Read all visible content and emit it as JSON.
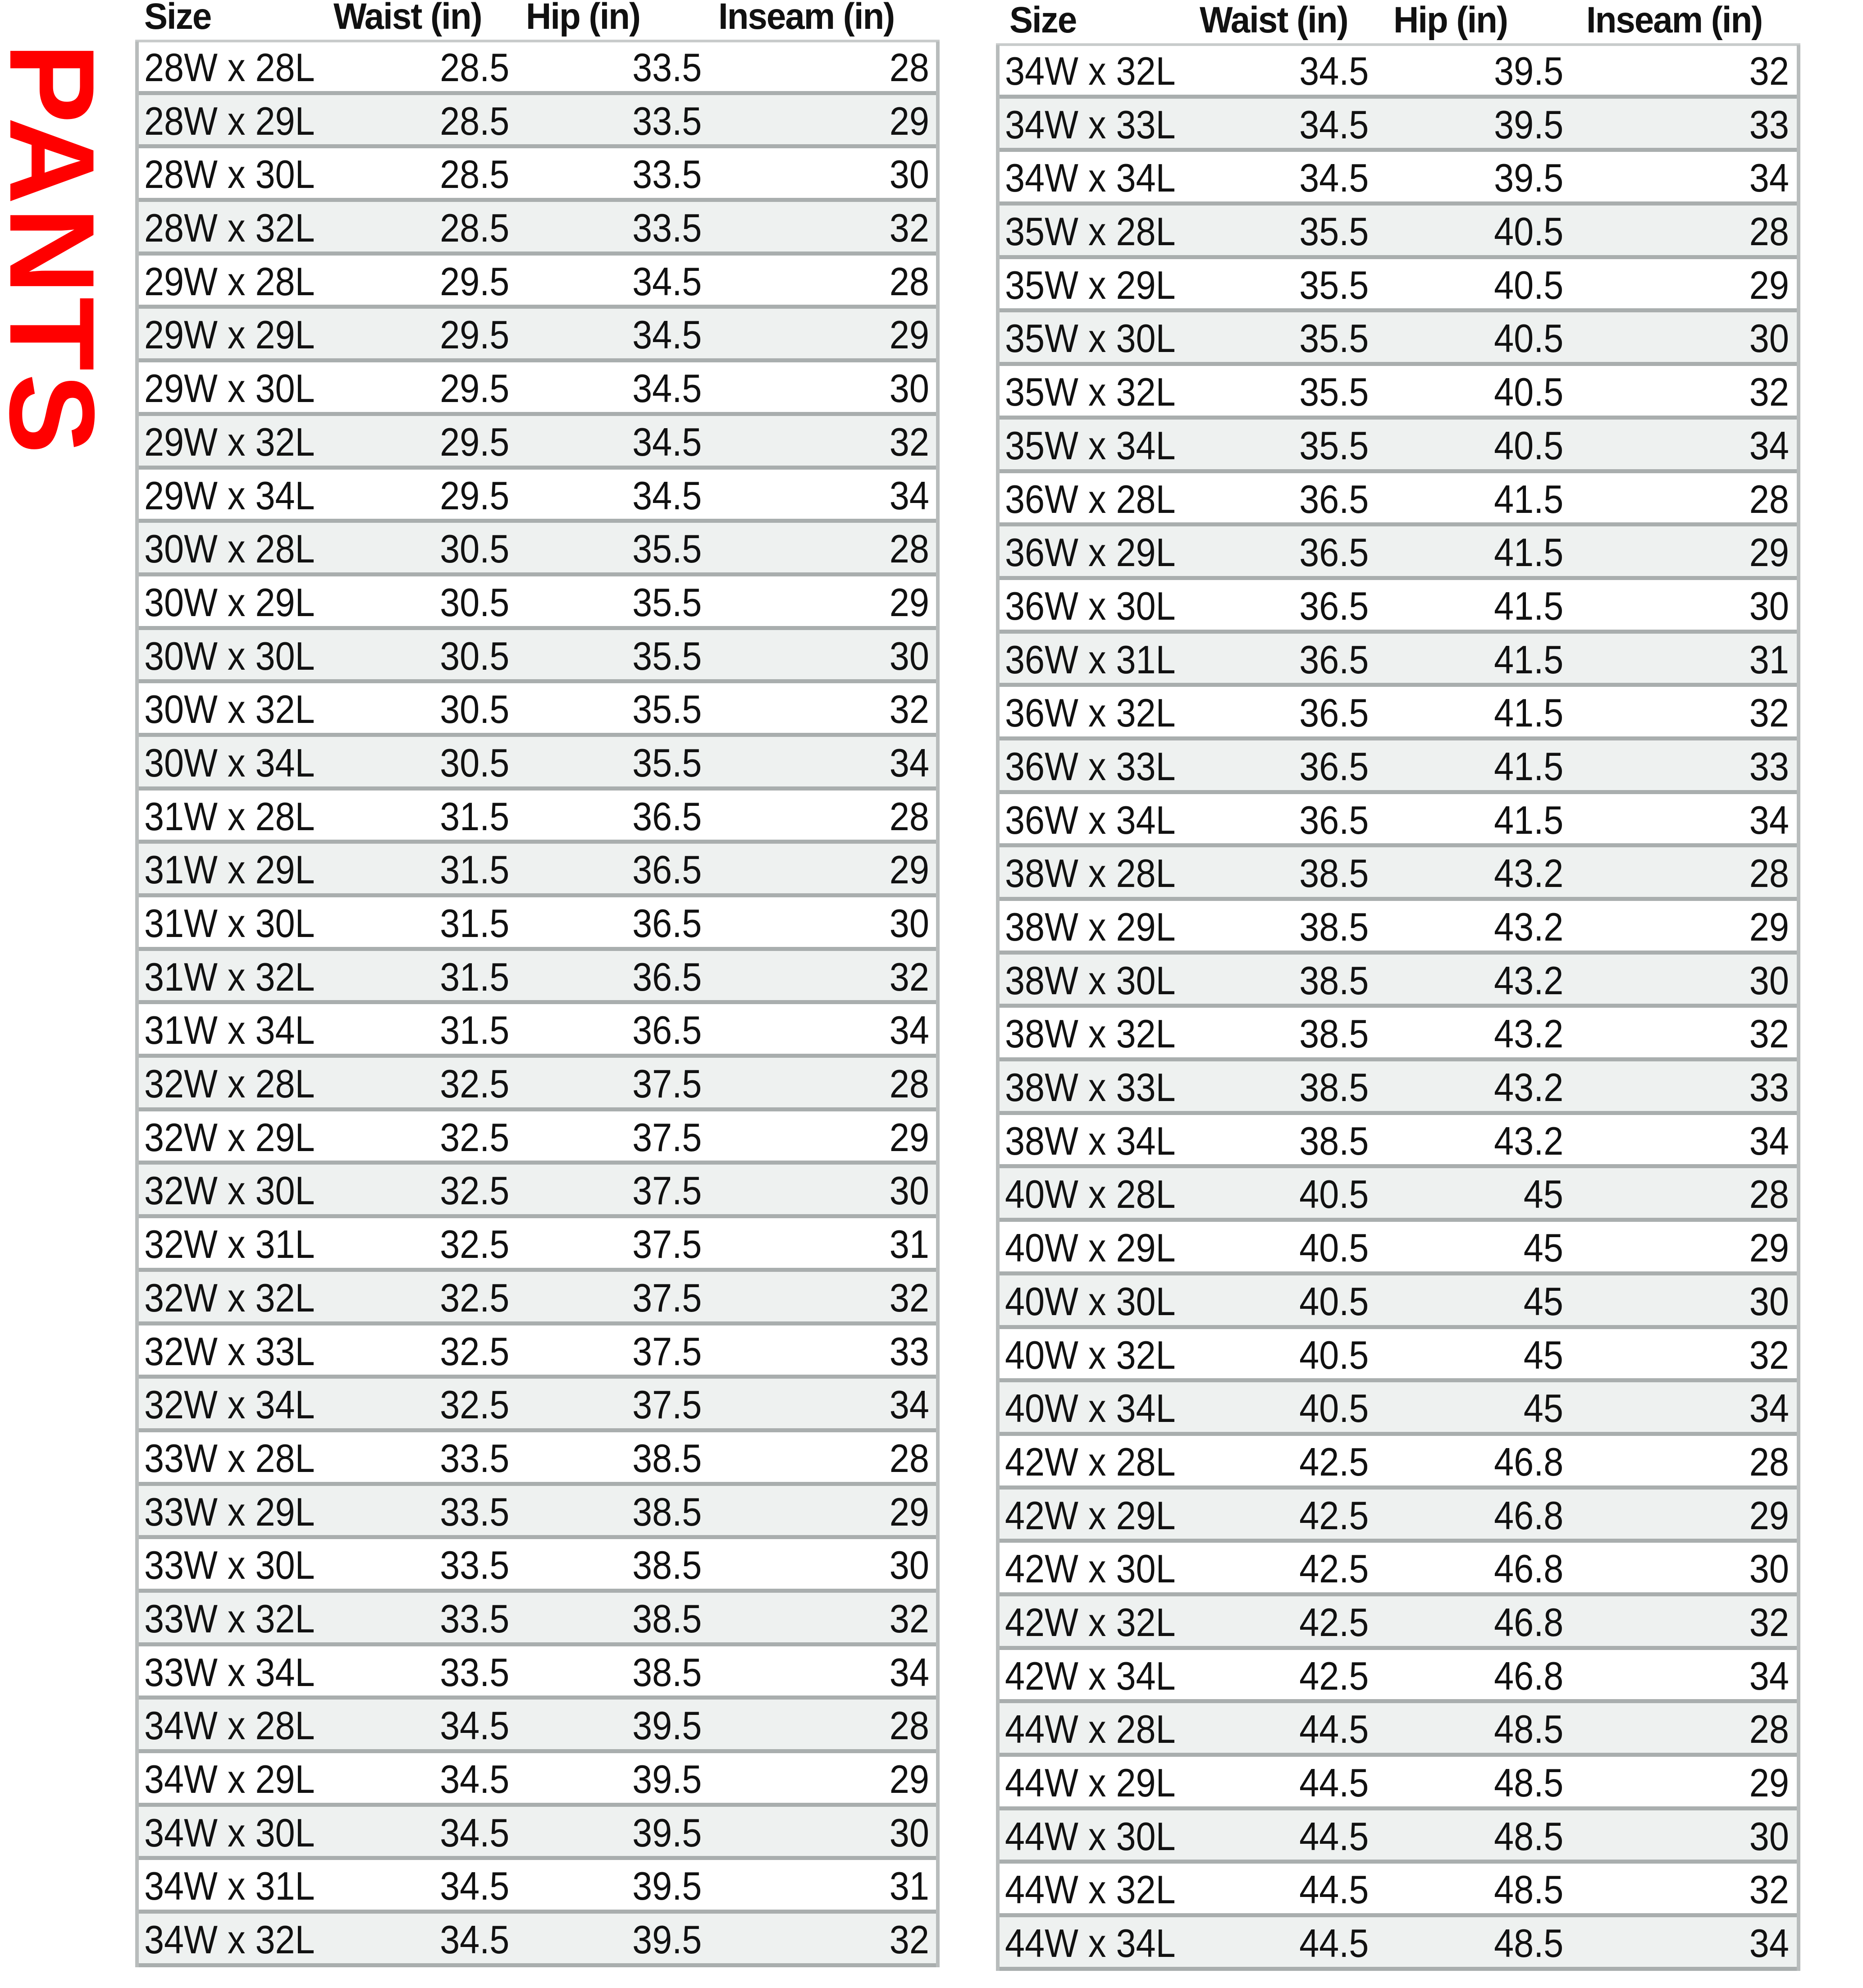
{
  "title": "PANTS",
  "headers": [
    "Size",
    "Waist (in)",
    "Hip (in)",
    "Inseam (in)"
  ],
  "tables": [
    {
      "rows": [
        [
          "28W x 28L",
          "28.5",
          "33.5",
          "28"
        ],
        [
          "28W x 29L",
          "28.5",
          "33.5",
          "29"
        ],
        [
          "28W x 30L",
          "28.5",
          "33.5",
          "30"
        ],
        [
          "28W x 32L",
          "28.5",
          "33.5",
          "32"
        ],
        [
          "29W x 28L",
          "29.5",
          "34.5",
          "28"
        ],
        [
          "29W x 29L",
          "29.5",
          "34.5",
          "29"
        ],
        [
          "29W x 30L",
          "29.5",
          "34.5",
          "30"
        ],
        [
          "29W x 32L",
          "29.5",
          "34.5",
          "32"
        ],
        [
          "29W x 34L",
          "29.5",
          "34.5",
          "34"
        ],
        [
          "30W x 28L",
          "30.5",
          "35.5",
          "28"
        ],
        [
          "30W x 29L",
          "30.5",
          "35.5",
          "29"
        ],
        [
          "30W x 30L",
          "30.5",
          "35.5",
          "30"
        ],
        [
          "30W x 32L",
          "30.5",
          "35.5",
          "32"
        ],
        [
          "30W x 34L",
          "30.5",
          "35.5",
          "34"
        ],
        [
          "31W x 28L",
          "31.5",
          "36.5",
          "28"
        ],
        [
          "31W x 29L",
          "31.5",
          "36.5",
          "29"
        ],
        [
          "31W x 30L",
          "31.5",
          "36.5",
          "30"
        ],
        [
          "31W x 32L",
          "31.5",
          "36.5",
          "32"
        ],
        [
          "31W x 34L",
          "31.5",
          "36.5",
          "34"
        ],
        [
          "32W x 28L",
          "32.5",
          "37.5",
          "28"
        ],
        [
          "32W x 29L",
          "32.5",
          "37.5",
          "29"
        ],
        [
          "32W x 30L",
          "32.5",
          "37.5",
          "30"
        ],
        [
          "32W x 31L",
          "32.5",
          "37.5",
          "31"
        ],
        [
          "32W x 32L",
          "32.5",
          "37.5",
          "32"
        ],
        [
          "32W x 33L",
          "32.5",
          "37.5",
          "33"
        ],
        [
          "32W x 34L",
          "32.5",
          "37.5",
          "34"
        ],
        [
          "33W x 28L",
          "33.5",
          "38.5",
          "28"
        ],
        [
          "33W x 29L",
          "33.5",
          "38.5",
          "29"
        ],
        [
          "33W x 30L",
          "33.5",
          "38.5",
          "30"
        ],
        [
          "33W x 32L",
          "33.5",
          "38.5",
          "32"
        ],
        [
          "33W x 34L",
          "33.5",
          "38.5",
          "34"
        ],
        [
          "34W x 28L",
          "34.5",
          "39.5",
          "28"
        ],
        [
          "34W x 29L",
          "34.5",
          "39.5",
          "29"
        ],
        [
          "34W x 30L",
          "34.5",
          "39.5",
          "30"
        ],
        [
          "34W x 31L",
          "34.5",
          "39.5",
          "31"
        ],
        [
          "34W x 32L",
          "34.5",
          "39.5",
          "32"
        ]
      ]
    },
    {
      "rows": [
        [
          "34W x 32L",
          "34.5",
          "39.5",
          "32"
        ],
        [
          "34W x 33L",
          "34.5",
          "39.5",
          "33"
        ],
        [
          "34W x 34L",
          "34.5",
          "39.5",
          "34"
        ],
        [
          "35W x 28L",
          "35.5",
          "40.5",
          "28"
        ],
        [
          "35W x 29L",
          "35.5",
          "40.5",
          "29"
        ],
        [
          "35W x 30L",
          "35.5",
          "40.5",
          "30"
        ],
        [
          "35W x 32L",
          "35.5",
          "40.5",
          "32"
        ],
        [
          "35W x 34L",
          "35.5",
          "40.5",
          "34"
        ],
        [
          "36W x 28L",
          "36.5",
          "41.5",
          "28"
        ],
        [
          "36W x 29L",
          "36.5",
          "41.5",
          "29"
        ],
        [
          "36W x 30L",
          "36.5",
          "41.5",
          "30"
        ],
        [
          "36W x 31L",
          "36.5",
          "41.5",
          "31"
        ],
        [
          "36W x 32L",
          "36.5",
          "41.5",
          "32"
        ],
        [
          "36W x 33L",
          "36.5",
          "41.5",
          "33"
        ],
        [
          "36W x 34L",
          "36.5",
          "41.5",
          "34"
        ],
        [
          "38W x 28L",
          "38.5",
          "43.2",
          "28"
        ],
        [
          "38W x 29L",
          "38.5",
          "43.2",
          "29"
        ],
        [
          "38W x 30L",
          "38.5",
          "43.2",
          "30"
        ],
        [
          "38W x 32L",
          "38.5",
          "43.2",
          "32"
        ],
        [
          "38W x 33L",
          "38.5",
          "43.2",
          "33"
        ],
        [
          "38W x 34L",
          "38.5",
          "43.2",
          "34"
        ],
        [
          "40W x 28L",
          "40.5",
          "45",
          "28"
        ],
        [
          "40W x 29L",
          "40.5",
          "45",
          "29"
        ],
        [
          "40W x 30L",
          "40.5",
          "45",
          "30"
        ],
        [
          "40W x 32L",
          "40.5",
          "45",
          "32"
        ],
        [
          "40W x 34L",
          "40.5",
          "45",
          "34"
        ],
        [
          "42W x 28L",
          "42.5",
          "46.8",
          "28"
        ],
        [
          "42W x 29L",
          "42.5",
          "46.8",
          "29"
        ],
        [
          "42W x 30L",
          "42.5",
          "46.8",
          "30"
        ],
        [
          "42W x 32L",
          "42.5",
          "46.8",
          "32"
        ],
        [
          "42W x 34L",
          "42.5",
          "46.8",
          "34"
        ],
        [
          "44W x 28L",
          "44.5",
          "48.5",
          "28"
        ],
        [
          "44W x 29L",
          "44.5",
          "48.5",
          "29"
        ],
        [
          "44W x 30L",
          "44.5",
          "48.5",
          "30"
        ],
        [
          "44W x 32L",
          "44.5",
          "48.5",
          "32"
        ],
        [
          "44W x 34L",
          "44.5",
          "48.5",
          "34"
        ]
      ]
    }
  ],
  "colors": {
    "title": "#ff0000",
    "row_alt": "#eef1f0",
    "border": "#a9aeae"
  }
}
